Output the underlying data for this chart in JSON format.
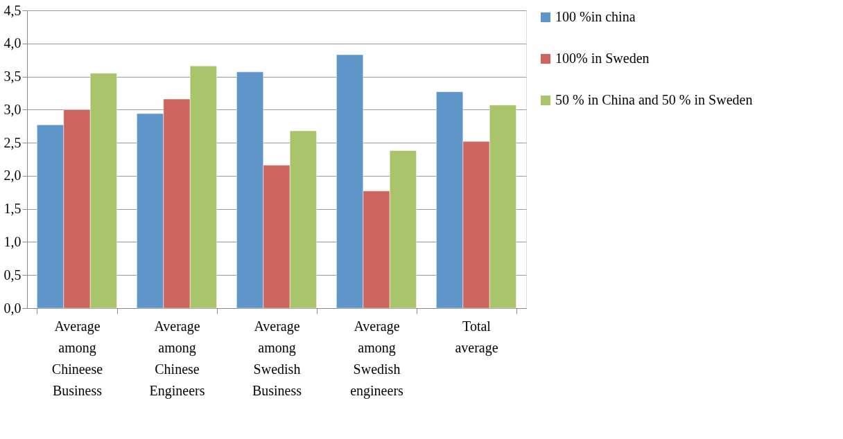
{
  "chart_data": {
    "type": "bar",
    "categories": [
      "Average among Chineese Business",
      "Average among Chinese Engineers",
      "Average among Swedish Business",
      "Average among Swedish engineers",
      "Total average"
    ],
    "series": [
      {
        "name": "100 %in china",
        "color": "#5f95c9",
        "values": [
          2.77,
          2.94,
          3.57,
          3.83,
          3.27
        ]
      },
      {
        "name": "100% in Sweden",
        "color": "#cc6560",
        "values": [
          3.0,
          3.16,
          2.16,
          1.77,
          2.52
        ]
      },
      {
        "name": "50 % in China and 50 % in Sweden",
        "color": "#aac46c",
        "values": [
          3.55,
          3.66,
          2.68,
          2.38,
          3.07
        ]
      }
    ],
    "ylim": [
      0,
      4.5
    ],
    "yticks": [
      {
        "value": 0,
        "label": "0,0"
      },
      {
        "value": 0.5,
        "label": "0,5"
      },
      {
        "value": 1,
        "label": "1,0"
      },
      {
        "value": 1.5,
        "label": "1,5"
      },
      {
        "value": 2,
        "label": "2,0"
      },
      {
        "value": 2.5,
        "label": "2,5"
      },
      {
        "value": 3,
        "label": "3,0"
      },
      {
        "value": 3.5,
        "label": "3,5"
      },
      {
        "value": 4,
        "label": "4,0"
      },
      {
        "value": 4.5,
        "label": "4,5"
      }
    ],
    "grid": "y",
    "legend": "right"
  }
}
